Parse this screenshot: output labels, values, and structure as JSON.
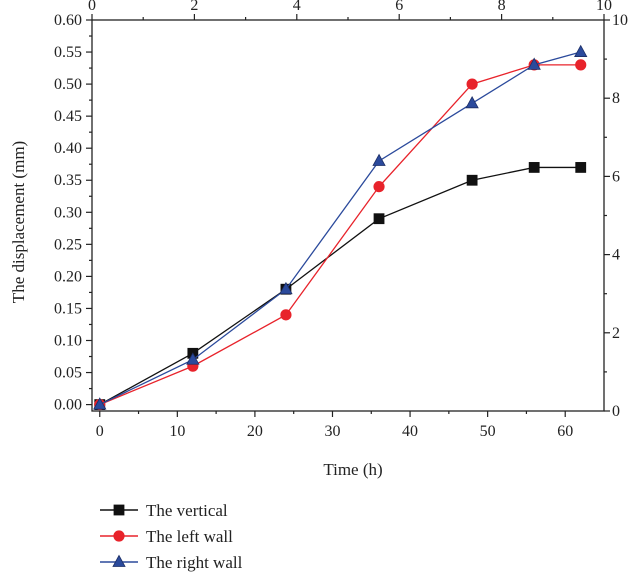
{
  "chart_data": {
    "type": "line",
    "title": "",
    "xlabel": "Time (h)",
    "ylabel": "The displacement (mm)",
    "x": [
      0,
      12,
      24,
      36,
      48,
      56,
      62
    ],
    "xlim": [
      -1,
      65
    ],
    "ylim": [
      -0.01,
      0.6
    ],
    "xticks": [
      0,
      10,
      20,
      30,
      40,
      50,
      60
    ],
    "yticks": [
      0.0,
      0.05,
      0.1,
      0.15,
      0.2,
      0.25,
      0.3,
      0.35,
      0.4,
      0.45,
      0.5,
      0.55,
      0.6
    ],
    "top_axis": {
      "lim": [
        0,
        10
      ],
      "ticks": [
        0,
        2,
        4,
        6,
        8,
        10
      ]
    },
    "right_axis": {
      "lim": [
        0,
        10
      ],
      "ticks": [
        0,
        2,
        4,
        6,
        8,
        10
      ]
    },
    "grid": false,
    "legend": "bottom-left, below plot",
    "series": [
      {
        "name": "The vertical",
        "marker": "square",
        "color": "#111111",
        "values": [
          0.0,
          0.08,
          0.18,
          0.29,
          0.35,
          0.37,
          0.37
        ]
      },
      {
        "name": "The left wall",
        "marker": "circle",
        "color": "#e8232b",
        "values": [
          0.0,
          0.06,
          0.14,
          0.34,
          0.5,
          0.53,
          0.53
        ]
      },
      {
        "name": "The right wall",
        "marker": "triangle",
        "color": "#2b4a9c",
        "values": [
          0.0,
          0.07,
          0.18,
          0.38,
          0.47,
          0.53,
          0.55
        ]
      }
    ]
  }
}
